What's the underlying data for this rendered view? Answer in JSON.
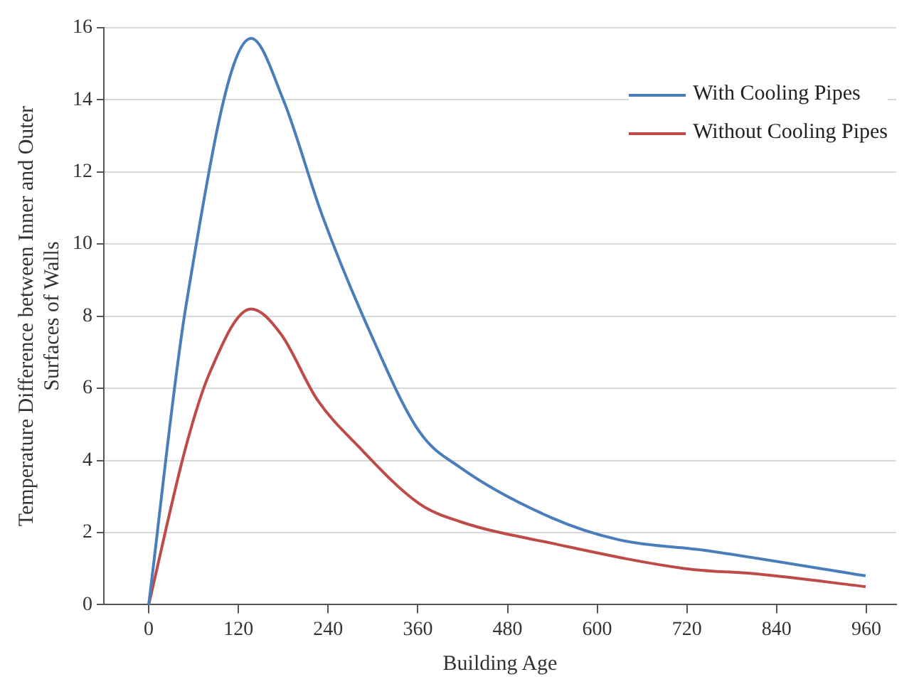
{
  "chart_data": {
    "type": "line",
    "xlabel": "Building Age",
    "ylabel": "Temperature Difference between Inner and Outer Surfaces of Walls",
    "xlim": [
      -60,
      1000
    ],
    "xticks": [
      0,
      120,
      240,
      360,
      480,
      600,
      720,
      840,
      960
    ],
    "ylim": [
      0,
      16
    ],
    "yticks": [
      0,
      2,
      4,
      6,
      8,
      10,
      12,
      14,
      16
    ],
    "grid": "y",
    "legend": "top right",
    "marker": "none",
    "line_style": "solid",
    "series": [
      {
        "name": "With Cooling Pipes",
        "color": "#4a7ebb",
        "x": [
          0,
          50,
          137,
          180,
          232,
          293,
          362,
          417,
          540,
          629,
          746,
          959
        ],
        "values": [
          0,
          8.3,
          15.7,
          14.0,
          10.8,
          7.7,
          4.8,
          3.8,
          2.4,
          1.8,
          1.5,
          0.8
        ]
      },
      {
        "name": "Without Cooling Pipes",
        "color": "#be4b48",
        "x": [
          0,
          50,
          81,
          137,
          177,
          225,
          280,
          362,
          417,
          540,
          718,
          815,
          959
        ],
        "values": [
          0,
          4.4,
          6.4,
          8.2,
          7.5,
          5.7,
          4.4,
          2.8,
          2.3,
          1.7,
          1.0,
          0.85,
          0.5
        ]
      }
    ]
  }
}
